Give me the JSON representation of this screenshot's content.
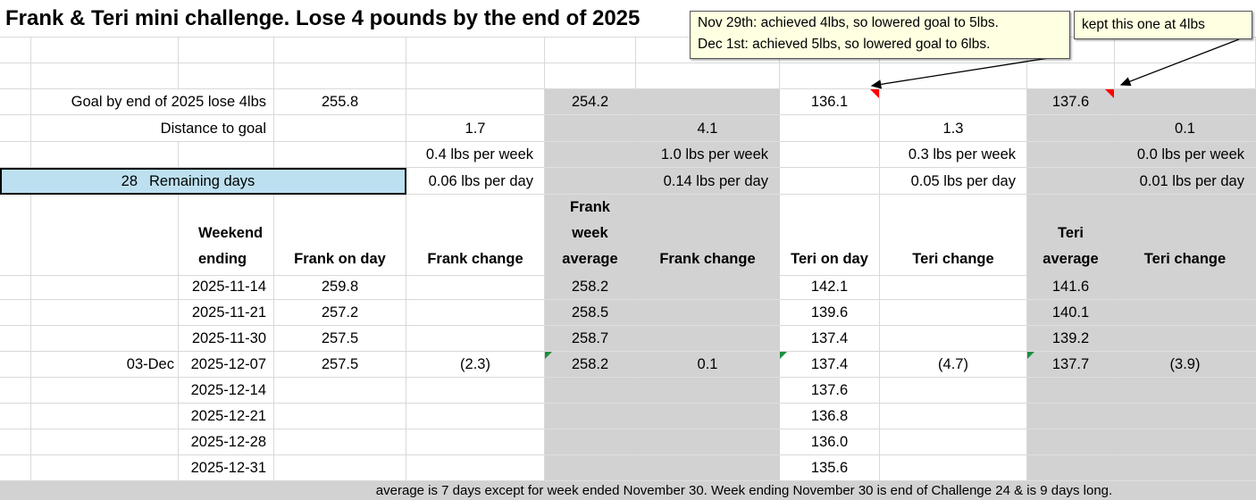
{
  "title": "Frank & Teri mini challenge. Lose 4 pounds by the end of 2025",
  "notes": {
    "note1": "Nov 29th: achieved 4lbs, so lowered goal to 5lbs.\nDec 1st: achieved 5lbs, so lowered goal to 6lbs.",
    "note2": "kept this one at 4lbs"
  },
  "summary": {
    "goal_label": "Goal by end of 2025 lose 4lbs",
    "distance_label": "Distance to goal",
    "remaining_days": "28",
    "remaining_days_label": "Remaining days",
    "frank": {
      "goal": "255.8",
      "distance": "1.7",
      "per_week": "0.4 lbs per week",
      "per_day": "0.06 lbs per day"
    },
    "frank_week_avg": {
      "goal": "254.2",
      "distance": "4.1",
      "per_week": "1.0 lbs per week",
      "per_day": "0.14 lbs per day"
    },
    "teri": {
      "goal": "136.1",
      "distance": "1.3",
      "per_week": "0.3 lbs per week",
      "per_day": "0.05 lbs per day"
    },
    "teri_avg": {
      "goal": "137.6",
      "distance": "0.1",
      "per_week": "0.0 lbs per week",
      "per_day": "0.01 lbs per day"
    }
  },
  "table": {
    "headers": {
      "weekend": "Weekend\nending",
      "frank_on_day": "Frank on day",
      "frank_change": "Frank change",
      "frank_week_average": "Frank\nweek\naverage",
      "frank_avg_change": "Frank change",
      "teri_on_day": "Teri on day",
      "teri_change": "Teri change",
      "teri_average": "Teri\naverage",
      "teri_avg_change": "Teri change"
    },
    "rows": [
      {
        "cells": [
          "",
          "2025-11-14",
          "259.8",
          "",
          "258.2",
          "",
          "142.1",
          "",
          "141.6",
          ""
        ],
        "indicators": []
      },
      {
        "cells": [
          "",
          "2025-11-21",
          "257.2",
          "",
          "258.5",
          "",
          "139.6",
          "",
          "140.1",
          ""
        ],
        "indicators": []
      },
      {
        "cells": [
          "",
          "2025-11-30",
          "257.5",
          "",
          "258.7",
          "",
          "137.4",
          "",
          "139.2",
          ""
        ],
        "indicators": []
      },
      {
        "cells": [
          "03-Dec",
          "2025-12-07",
          "257.5",
          "(2.3)",
          "258.2",
          "0.1",
          "137.4",
          "(4.7)",
          "137.7",
          "(3.9)"
        ],
        "indicators": [
          4,
          6,
          8
        ]
      },
      {
        "cells": [
          "",
          "2025-12-14",
          "",
          "",
          "",
          "",
          "137.6",
          "",
          "",
          ""
        ],
        "indicators": []
      },
      {
        "cells": [
          "",
          "2025-12-21",
          "",
          "",
          "",
          "",
          "136.8",
          "",
          "",
          ""
        ],
        "indicators": []
      },
      {
        "cells": [
          "",
          "2025-12-28",
          "",
          "",
          "",
          "",
          "136.0",
          "",
          "",
          ""
        ],
        "indicators": []
      },
      {
        "cells": [
          "",
          "2025-12-31",
          "",
          "",
          "",
          "",
          "135.6",
          "",
          "",
          ""
        ],
        "indicators": []
      }
    ]
  },
  "footer": "average is 7 days except for week ended November 30. Week ending November 30 is end of Challenge 24 & is 9 days long.",
  "colors": {
    "band_gray": "#D2D2D2",
    "highlight_blue": "#BDE0F0",
    "note_yellow": "#FFFFE1",
    "comment_indicator_red": "#FF0000",
    "formula_indicator_green": "#1E8E3E",
    "gridline": "#D9D9D9"
  }
}
